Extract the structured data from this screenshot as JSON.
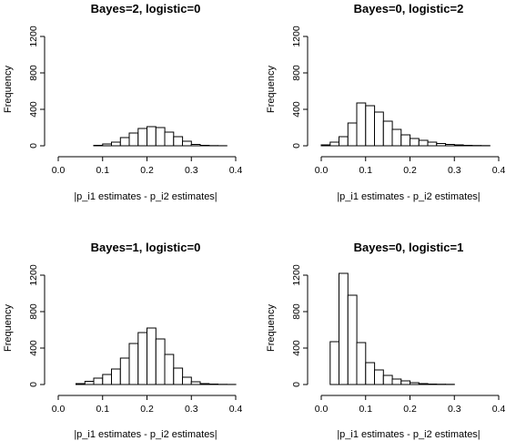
{
  "chart_data": [
    {
      "type": "bar",
      "title": "Bayes=2, logistic=0",
      "xlabel": "|p_i1 estimates - p_i2 estimates|",
      "ylabel": "Frequency",
      "xlim": [
        0,
        0.4
      ],
      "ylim": [
        0,
        1200
      ],
      "xticks": [
        "0.0",
        "0.1",
        "0.2",
        "0.3",
        "0.4"
      ],
      "yticks": [
        "0",
        "400",
        "800",
        "1200"
      ],
      "bin_width": 0.02,
      "bin_start": 0.08,
      "values": [
        5,
        20,
        40,
        90,
        140,
        190,
        210,
        200,
        150,
        100,
        50,
        15,
        5,
        2,
        1
      ]
    },
    {
      "type": "bar",
      "title": "Bayes=0, logistic=2",
      "xlabel": "|p_i1 estimates - p_i2 estimates|",
      "ylabel": "Frequency",
      "xlim": [
        0,
        0.4
      ],
      "ylim": [
        0,
        1200
      ],
      "xticks": [
        "0.0",
        "0.1",
        "0.2",
        "0.3",
        "0.4"
      ],
      "yticks": [
        "0",
        "400",
        "800",
        "1200"
      ],
      "bin_width": 0.02,
      "bin_start": 0.0,
      "values": [
        10,
        40,
        100,
        250,
        470,
        440,
        370,
        270,
        180,
        120,
        80,
        60,
        40,
        25,
        15,
        10,
        5,
        3,
        2
      ]
    },
    {
      "type": "bar",
      "title": "Bayes=1, logistic=0",
      "xlabel": "|p_i1 estimates - p_i2 estimates|",
      "ylabel": "Frequency",
      "xlim": [
        0,
        0.4
      ],
      "ylim": [
        0,
        1200
      ],
      "xticks": [
        "0.0",
        "0.1",
        "0.2",
        "0.3",
        "0.4"
      ],
      "yticks": [
        "0",
        "400",
        "800",
        "1200"
      ],
      "bin_width": 0.02,
      "bin_start": 0.04,
      "values": [
        10,
        35,
        70,
        110,
        170,
        290,
        450,
        570,
        620,
        500,
        330,
        180,
        80,
        30,
        10,
        5,
        2,
        1
      ]
    },
    {
      "type": "bar",
      "title": "Bayes=0, logistic=1",
      "xlabel": "|p_i1 estimates - p_i2 estimates|",
      "ylabel": "Frequency",
      "xlim": [
        0,
        0.4
      ],
      "ylim": [
        0,
        1200
      ],
      "xticks": [
        "0.0",
        "0.1",
        "0.2",
        "0.3",
        "0.4"
      ],
      "yticks": [
        "0",
        "400",
        "800",
        "1200"
      ],
      "bin_width": 0.02,
      "bin_start": 0.02,
      "values": [
        470,
        1220,
        980,
        460,
        240,
        160,
        100,
        60,
        40,
        20,
        10,
        5,
        3,
        2
      ]
    }
  ]
}
